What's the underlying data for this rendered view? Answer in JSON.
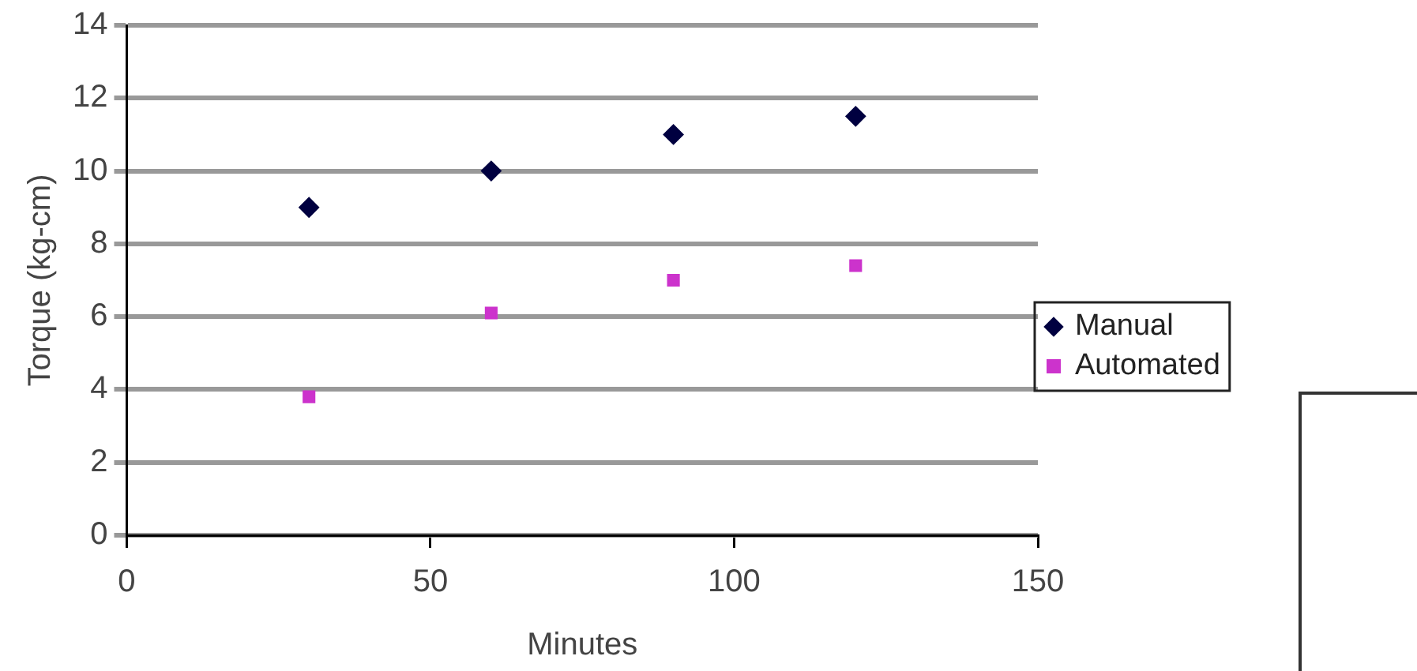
{
  "chart_data": {
    "type": "scatter",
    "xlabel": "Minutes",
    "ylabel": "Torque (kg-cm)",
    "series": [
      {
        "name": "Manual",
        "color": "#000040",
        "marker": "diamond",
        "x": [
          30,
          60,
          90,
          120
        ],
        "values": [
          9,
          10,
          11,
          11.5
        ]
      },
      {
        "name": "Automated",
        "color": "#cc33cc",
        "marker": "square",
        "x": [
          30,
          60,
          90,
          120
        ],
        "values": [
          3.8,
          6.1,
          7,
          7.4
        ]
      }
    ],
    "xlim": [
      0,
      150
    ],
    "xticks": [
      0,
      50,
      100,
      150
    ],
    "ylim": [
      0,
      14
    ],
    "yticks": [
      0,
      2,
      4,
      6,
      8,
      10,
      12,
      14
    ],
    "grid": "y",
    "legend": "right"
  }
}
